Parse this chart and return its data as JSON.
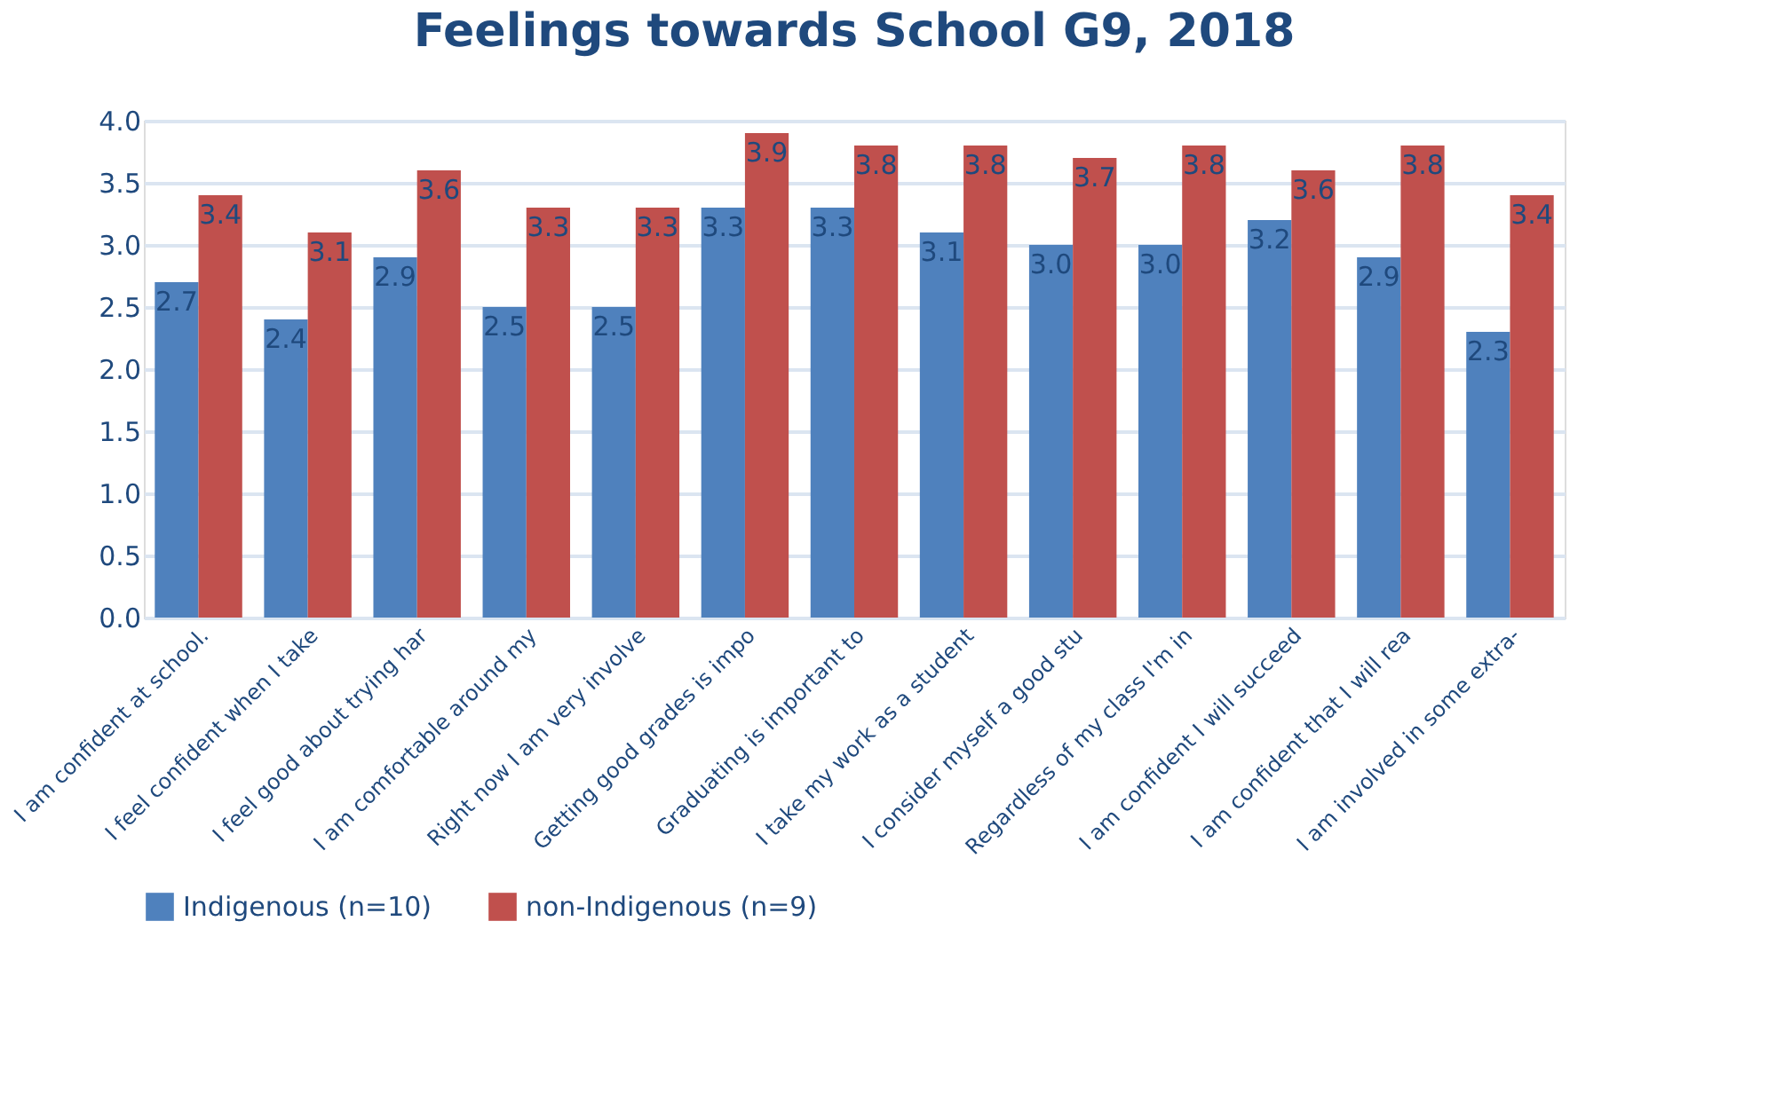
{
  "chart_data": {
    "type": "bar",
    "title": "Feelings towards School G9, 2018",
    "categories": [
      "I am confident at school.",
      "I feel confident when I take",
      "I feel good about trying har",
      "I am comfortable around my",
      "Right now I am very involve",
      "Getting good grades is impo",
      "Graduating is important to",
      "I take my work as a student",
      "I consider myself a good stu",
      "Regardless of my class I'm in",
      "I am confident I will succeed",
      "I am confident that I will rea",
      "I am involved in some extra-"
    ],
    "series": [
      {
        "name": "Indigenous (n=10)",
        "color": "#4f81bd",
        "values": [
          2.7,
          2.4,
          2.9,
          2.5,
          2.5,
          3.3,
          3.3,
          3.1,
          3.0,
          3.0,
          3.2,
          2.9,
          2.3
        ],
        "value_labels": [
          "2.7",
          "2.4",
          "2.9",
          "2.5",
          "2.5",
          "3.3",
          "3.3",
          "3.1",
          "3.0",
          "3.0",
          "3.2",
          "2.9",
          "2.3"
        ]
      },
      {
        "name": "non-Indigenous (n=9)",
        "color": "#c0504d",
        "values": [
          3.4,
          3.1,
          3.6,
          3.3,
          3.3,
          3.9,
          3.8,
          3.8,
          3.7,
          3.8,
          3.6,
          3.8,
          3.4
        ],
        "value_labels": [
          "3.4",
          "3.1",
          "3.6",
          "3.3",
          "3.3",
          "3.9",
          "3.8",
          "3.8",
          "3.7",
          "3.8",
          "3.6",
          "3.8",
          "3.4"
        ]
      }
    ],
    "ylim": [
      0,
      4
    ],
    "yticks": [
      {
        "value": 0,
        "label": "0.0"
      },
      {
        "value": 0.5,
        "label": "0.5"
      },
      {
        "value": 1,
        "label": "1.0"
      },
      {
        "value": 1.5,
        "label": "1.5"
      },
      {
        "value": 2,
        "label": "2.0"
      },
      {
        "value": 2.5,
        "label": "2.5"
      },
      {
        "value": 3,
        "label": "3.0"
      },
      {
        "value": 3.5,
        "label": "3.5"
      },
      {
        "value": 4,
        "label": "4.0"
      }
    ],
    "grid": "y",
    "legend": "bottom"
  }
}
